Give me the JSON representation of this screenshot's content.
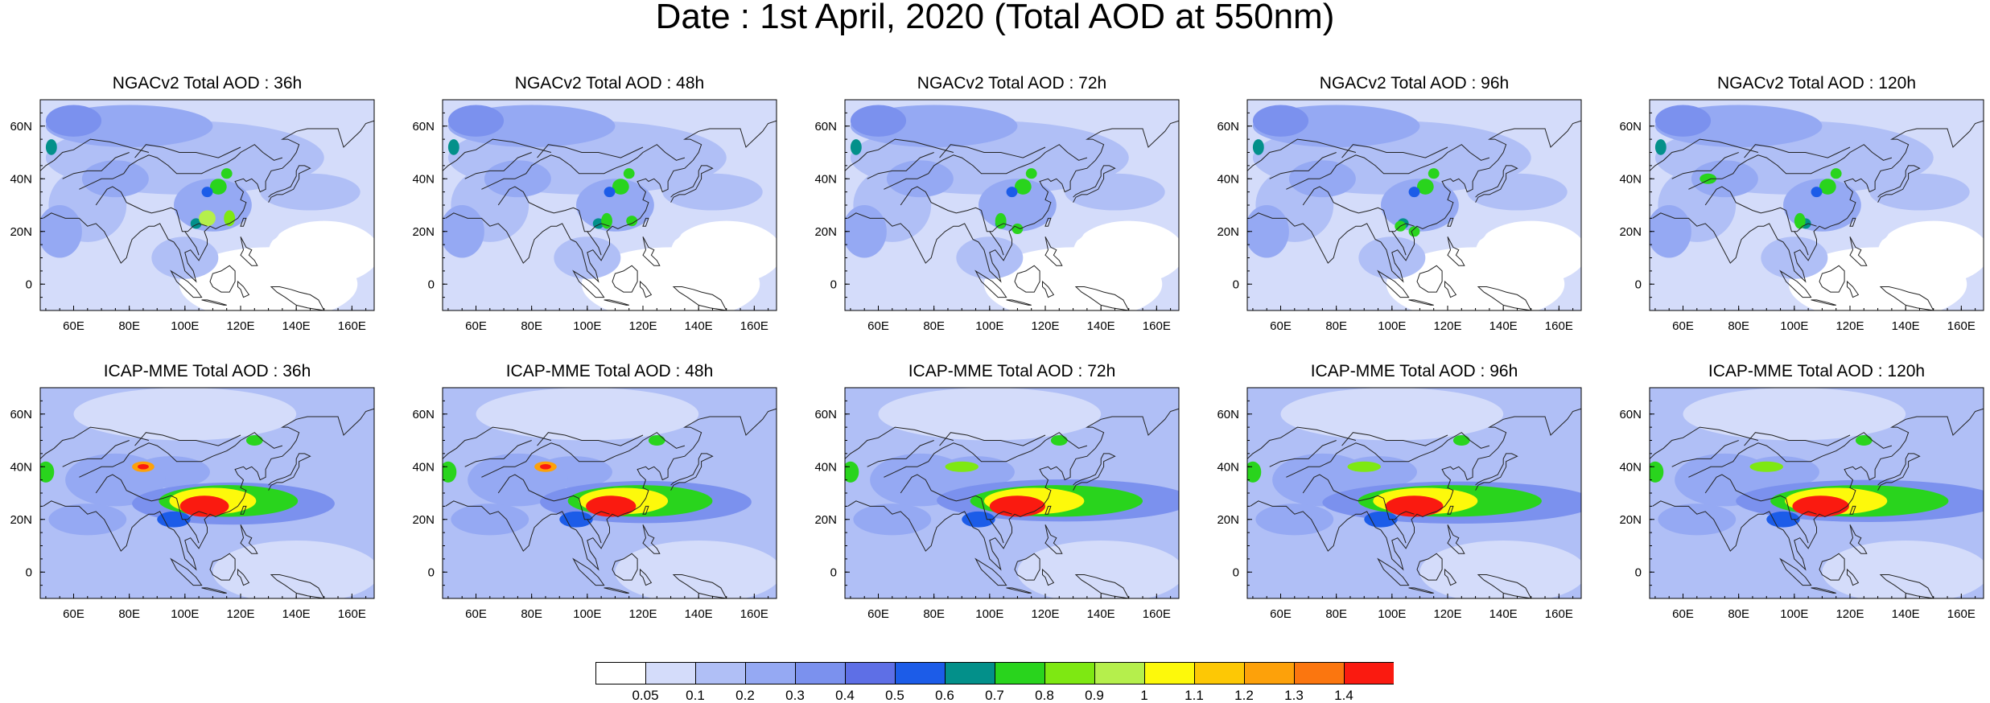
{
  "title": "Date : 1st April, 2020 (Total AOD at 550nm)",
  "colors": [
    "#ffffff",
    "#d4dcfa",
    "#b0bff6",
    "#95a9f3",
    "#7b91ee",
    "#5e6fe6",
    "#1c5ce8",
    "#03908a",
    "#29d41d",
    "#7ee812",
    "#b5ef4c",
    "#fdf90b",
    "#fdc805",
    "#fda10a",
    "#fb760f",
    "#fa1a10"
  ],
  "colorbar_labels": [
    "0.05",
    "0.1",
    "0.2",
    "0.3",
    "0.4",
    "0.5",
    "0.6",
    "0.7",
    "0.8",
    "0.9",
    "1",
    "1.1",
    "1.2",
    "1.3",
    "1.4"
  ],
  "axis": {
    "x_ticks": [
      "60E",
      "80E",
      "100E",
      "120E",
      "140E",
      "160E"
    ],
    "y_ticks": [
      "60N",
      "40N",
      "20N",
      "0"
    ]
  },
  "panels": [
    {
      "title": "NGACv2 Total AOD : 36h"
    },
    {
      "title": "NGACv2 Total AOD : 48h"
    },
    {
      "title": "NGACv2 Total AOD : 72h"
    },
    {
      "title": "NGACv2 Total AOD : 96h"
    },
    {
      "title": "NGACv2 Total AOD : 120h"
    },
    {
      "title": "ICAP-MME Total AOD : 36h"
    },
    {
      "title": "ICAP-MME Total AOD : 48h"
    },
    {
      "title": "ICAP-MME Total AOD : 72h"
    },
    {
      "title": "ICAP-MME Total AOD : 96h"
    },
    {
      "title": "ICAP-MME Total AOD : 120h"
    }
  ]
}
